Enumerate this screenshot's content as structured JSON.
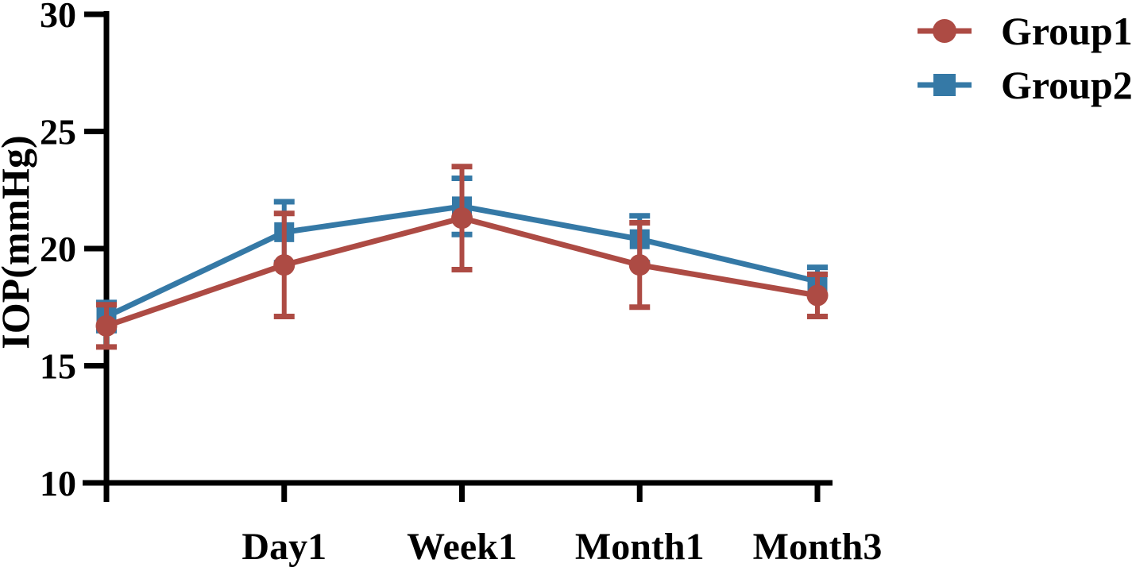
{
  "figure": {
    "background_color": "#ffffff",
    "axis_color": "#000000",
    "text_color": "#000000"
  },
  "chart_data": {
    "type": "line",
    "title": "",
    "xlabel": "",
    "ylabel": "IOP(mmHg)",
    "ylim": [
      10,
      30
    ],
    "yticks": [
      10,
      15,
      20,
      25,
      30
    ],
    "categories": [
      "",
      "Day1",
      "Week1",
      "Month1",
      "Month3"
    ],
    "grid": false,
    "error_bars": true,
    "legend_position": "top-right",
    "series": [
      {
        "name": "Group1",
        "marker": "circle",
        "color": "#AD4B44",
        "values": [
          16.7,
          19.3,
          21.3,
          19.3,
          18.0
        ],
        "errors": [
          0.9,
          2.2,
          2.2,
          1.8,
          0.9
        ]
      },
      {
        "name": "Group2",
        "marker": "square",
        "color": "#3579A6",
        "values": [
          17.1,
          20.7,
          21.8,
          20.4,
          18.6
        ],
        "errors": [
          0.6,
          1.3,
          1.2,
          1.0,
          0.6
        ]
      }
    ]
  }
}
